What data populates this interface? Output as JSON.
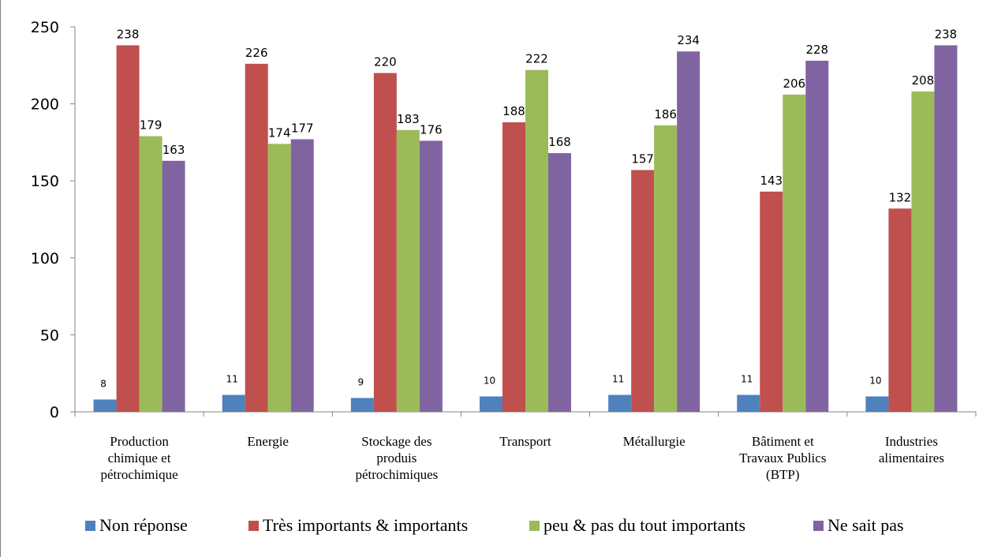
{
  "chart_data": {
    "type": "bar",
    "title": "",
    "xlabel": "",
    "ylabel": "",
    "ylim": [
      0,
      250
    ],
    "yticks": [
      0,
      50,
      100,
      150,
      200,
      250
    ],
    "grid": false,
    "legend_position": "bottom",
    "categories": [
      [
        "Production",
        "chimique et",
        "pétrochimique"
      ],
      [
        "Energie"
      ],
      [
        "Stockage des",
        "produis",
        "pétrochimiques"
      ],
      [
        "Transport"
      ],
      [
        "Métallurgie"
      ],
      [
        "Bâtiment et",
        "Travaux Publics",
        "(BTP)"
      ],
      [
        "Industries",
        "alimentaires"
      ]
    ],
    "series": [
      {
        "name": "Non réponse",
        "color": "#4f81bd",
        "values": [
          8,
          11,
          9,
          10,
          11,
          11,
          10
        ]
      },
      {
        "name": "Très importants & importants",
        "color": "#c0504d",
        "values": [
          238,
          226,
          220,
          188,
          157,
          143,
          132
        ]
      },
      {
        "name": "peu & pas du tout importants",
        "color": "#9bbb59",
        "values": [
          179,
          174,
          183,
          222,
          186,
          206,
          208
        ]
      },
      {
        "name": "Ne sait pas",
        "color": "#8064a2",
        "values": [
          163,
          177,
          176,
          168,
          234,
          228,
          238
        ]
      }
    ]
  }
}
